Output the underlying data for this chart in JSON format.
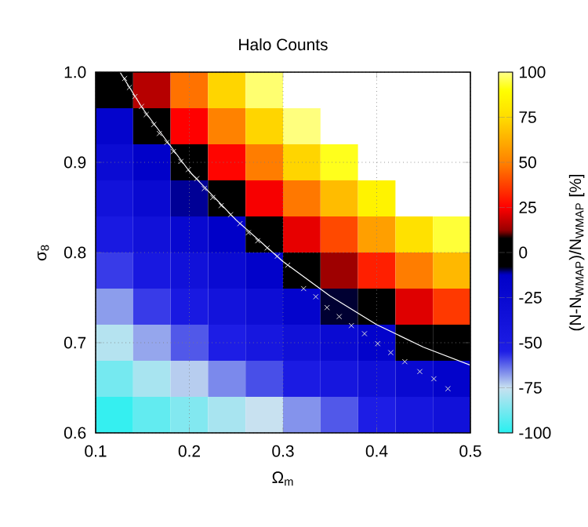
{
  "chart_data": {
    "type": "heatmap",
    "title": "Halo Counts",
    "xlabel": "Ω$_{m}$",
    "ylabel": "σ$_{8}$",
    "clabel": "(N-N$_{WMAP}$)/N$_{WMAP}$ [%]",
    "x": [
      0.12,
      0.16,
      0.2,
      0.24,
      0.28,
      0.32,
      0.36,
      0.4,
      0.44,
      0.48
    ],
    "y": [
      0.98,
      0.94,
      0.9,
      0.86,
      0.82,
      0.78,
      0.74,
      0.7,
      0.66,
      0.62
    ],
    "xlim": [
      0.1,
      0.5
    ],
    "ylim": [
      0.6,
      1.0
    ],
    "xticks": [
      0.1,
      0.2,
      0.3,
      0.4,
      0.5
    ],
    "yticks": [
      0.6,
      0.7,
      0.8,
      0.9,
      {
        "value": 1,
        "label": "1.0"
      }
    ],
    "clim": [
      -100,
      100
    ],
    "cticks": [
      -100,
      -75,
      -50,
      -25,
      0,
      25,
      50,
      75,
      100
    ],
    "grid": true,
    "cells": [
      [
        -8,
        16,
        47,
        73,
        98,
        null,
        null,
        null,
        null,
        null
      ],
      [
        -18,
        -3,
        25,
        50,
        73,
        99,
        null,
        null,
        null,
        null
      ],
      [
        -28,
        -14,
        3,
        26,
        49,
        73,
        92,
        null,
        null,
        null
      ],
      [
        -38,
        -25,
        -11,
        3,
        24,
        48,
        66,
        85,
        null,
        null
      ],
      [
        -48,
        -36,
        -23,
        -12,
        0,
        22,
        39,
        58,
        77,
        94
      ],
      [
        -58,
        -47,
        -36,
        -26,
        -15,
        -2,
        13,
        31,
        49,
        65
      ],
      [
        -68,
        -58,
        -48,
        -39,
        -30,
        -18,
        -9,
        3,
        21,
        36
      ],
      [
        -78,
        -69,
        -61,
        -53,
        -45,
        -35,
        -26,
        -16,
        -5,
        7
      ],
      [
        -88,
        -80,
        -73,
        -66,
        -60,
        -51,
        -44,
        -35,
        -25,
        -16
      ],
      [
        -98,
        -91,
        -86,
        -80,
        -75,
        -67,
        -61,
        -54,
        -44,
        -36
      ]
    ],
    "series": [
      {
        "type": "line",
        "color": "#ffffff",
        "x": [
          0.126,
          0.15,
          0.2,
          0.25,
          0.3,
          0.35,
          0.4,
          0.45,
          0.5
        ],
        "values": [
          1.0,
          0.96,
          0.89,
          0.836,
          0.79,
          0.752,
          0.72,
          0.695,
          0.675
        ]
      },
      {
        "type": "scatter",
        "marker": "cross",
        "color": "#dddddd",
        "x": [
          0.131,
          0.136,
          0.142,
          0.149,
          0.154,
          0.162,
          0.168,
          0.176,
          0.183,
          0.191,
          0.199,
          0.208,
          0.216,
          0.225,
          0.234,
          0.244,
          0.254,
          0.263,
          0.273,
          0.283,
          0.294,
          0.305,
          0.322,
          0.335,
          0.347,
          0.36,
          0.373,
          0.387,
          0.401,
          0.415,
          0.43,
          0.446,
          0.461,
          0.476
        ],
        "values": [
          0.993,
          0.983,
          0.973,
          0.962,
          0.953,
          0.942,
          0.932,
          0.922,
          0.912,
          0.901,
          0.892,
          0.882,
          0.871,
          0.861,
          0.852,
          0.842,
          0.832,
          0.822,
          0.813,
          0.805,
          0.796,
          0.786,
          0.76,
          0.751,
          0.739,
          0.729,
          0.719,
          0.71,
          0.699,
          0.689,
          0.679,
          0.668,
          0.66,
          0.649
        ]
      }
    ]
  }
}
